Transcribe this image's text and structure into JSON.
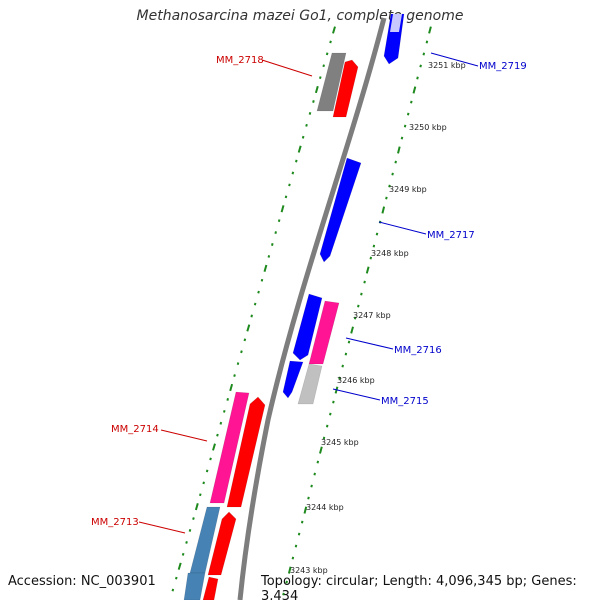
{
  "title": "Methanosarcina mazei Go1, complete genome",
  "accession": "Accession: NC_003901",
  "stats": "Topology: circular; Length: 4,096,345 bp; Genes: 3,434",
  "colors": {
    "backbone": "#7d7d7d",
    "ticks": "#1e8a1e",
    "forward_label": "#0000cc",
    "reverse_label": "#cc0000",
    "cds": "#0000ff",
    "rna": "#ff0000",
    "pink": "#ff1493",
    "steelblue": "#4682b4",
    "gray": "#808080",
    "lightgray": "#c0c0c0"
  },
  "kbp_ticks": [
    {
      "label": "3251 kbp"
    },
    {
      "label": "3250 kbp"
    },
    {
      "label": "3249 kbp"
    },
    {
      "label": "3248 kbp"
    },
    {
      "label": "3247 kbp"
    },
    {
      "label": "3246 kbp"
    },
    {
      "label": "3245 kbp"
    },
    {
      "label": "3244 kbp"
    },
    {
      "label": "3243 kbp"
    }
  ],
  "gene_labels": [
    {
      "label": "MM_2719",
      "strand": "forward"
    },
    {
      "label": "MM_2718",
      "strand": "reverse"
    },
    {
      "label": "MM_2717",
      "strand": "forward"
    },
    {
      "label": "MM_2716",
      "strand": "forward"
    },
    {
      "label": "MM_2715",
      "strand": "forward"
    },
    {
      "label": "MM_2714",
      "strand": "reverse"
    },
    {
      "label": "MM_2713",
      "strand": "reverse"
    }
  ]
}
